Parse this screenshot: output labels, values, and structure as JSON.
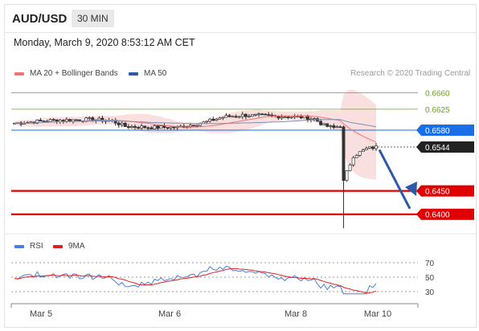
{
  "header": {
    "symbol": "AUD/USD",
    "timeframe": "30 MIN"
  },
  "timestamp": "Monday, March 9, 2020 8:53:12 AM CET",
  "legend": {
    "ma20_label": "MA 20 + Bollinger Bands",
    "ma20_color": "#ef7575",
    "ma50_label": "MA 50",
    "ma50_color": "#2d5aa8"
  },
  "copyright": "Research © 2020 Trading Central",
  "rsi_legend": {
    "rsi_label": "RSI",
    "rsi_color": "#4a7de0",
    "ma_label": "9MA",
    "ma_color": "#e02020"
  },
  "chart_data": {
    "type": "candlestick",
    "x_labels": [
      "Mar 5",
      "Mar 6",
      "Mar 8",
      "Mar 10"
    ],
    "price_range": [
      0.636,
      0.669
    ],
    "levels": [
      {
        "label": "0.6660",
        "value": 0.666,
        "style": "resistance",
        "color": "#6aa61e"
      },
      {
        "label": "0.6625",
        "value": 0.6625,
        "style": "resistance",
        "color": "#6aa61e"
      },
      {
        "label": "0.6580",
        "value": 0.658,
        "style": "pivot",
        "color": "#1a6fe8"
      },
      {
        "label": "0.6544",
        "value": 0.6544,
        "style": "last",
        "color": "#222222"
      },
      {
        "label": "0.6450",
        "value": 0.645,
        "style": "target",
        "color": "#e00000"
      },
      {
        "label": "0.6400",
        "value": 0.64,
        "style": "target",
        "color": "#e00000"
      }
    ],
    "rsi_levels": [
      70,
      50,
      30
    ],
    "rsi_range": [
      20,
      80
    ]
  }
}
